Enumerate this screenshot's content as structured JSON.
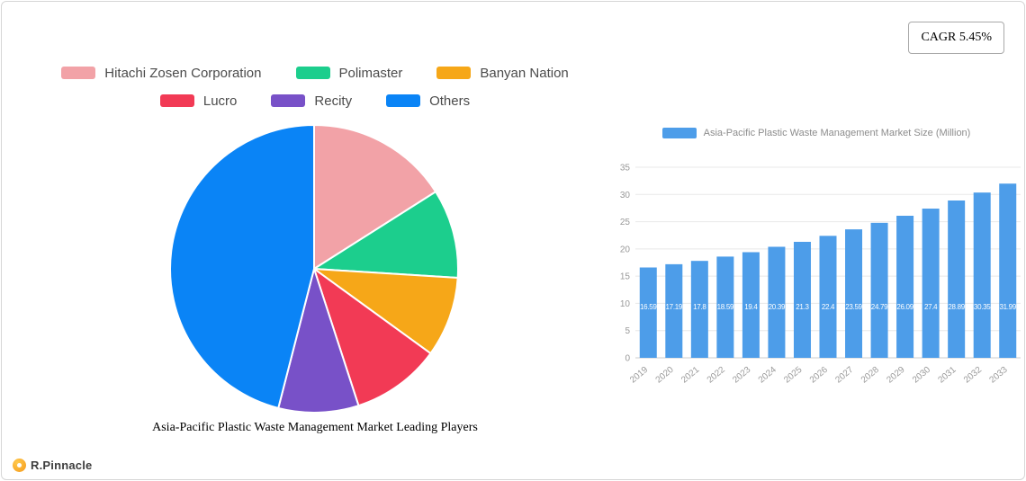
{
  "cagr_badge": {
    "label": "CAGR 5.45%"
  },
  "logo": {
    "text": "R.Pinnacle"
  },
  "colors": {
    "bar": "#4d9de9",
    "grid": "#e8e8e8",
    "axis_text": "#999999",
    "axis_line": "#cccccc",
    "bar_value_label": "#ffffff"
  },
  "chart_data": [
    {
      "type": "pie",
      "title": "Asia-Pacific Plastic Waste Management Market Leading Players",
      "labels": [
        "Hitachi Zosen Corporation",
        "Polimaster",
        "Banyan Nation",
        "Lucro",
        "Recity",
        "Others"
      ],
      "values": [
        16,
        10,
        9,
        10,
        9,
        46
      ],
      "colors": [
        "#f2a2a7",
        "#1cce8d",
        "#f6a718",
        "#f23a55",
        "#7851c8",
        "#0a84f6"
      ],
      "legend_position": "top",
      "start_angle_deg": -90,
      "unit": "percent share (estimated from slice angles)"
    },
    {
      "type": "bar",
      "title": "Asia-Pacific Plastic Waste Management Market Size (Million)",
      "categories": [
        "2019",
        "2020",
        "2021",
        "2022",
        "2023",
        "2024",
        "2025",
        "2026",
        "2027",
        "2028",
        "2029",
        "2030",
        "2031",
        "2032",
        "2033"
      ],
      "values": [
        16.59,
        17.19,
        17.8,
        18.59,
        19.4,
        20.39,
        21.3,
        22.4,
        23.59,
        24.79,
        26.09,
        27.4,
        28.89,
        30.35,
        31.99
      ],
      "value_labels": [
        "16.59",
        "17.19",
        "17.8",
        "18.59",
        "19.4",
        "20.39",
        "21.3",
        "22.4",
        "23.59",
        "24.79",
        "26.09",
        "27.4",
        "28.89",
        "30.35",
        "31.99"
      ],
      "ylim": [
        0,
        35
      ],
      "yticks": [
        0,
        5,
        10,
        15,
        20,
        25,
        30,
        35
      ],
      "grid": true,
      "legend_position": "top"
    }
  ]
}
